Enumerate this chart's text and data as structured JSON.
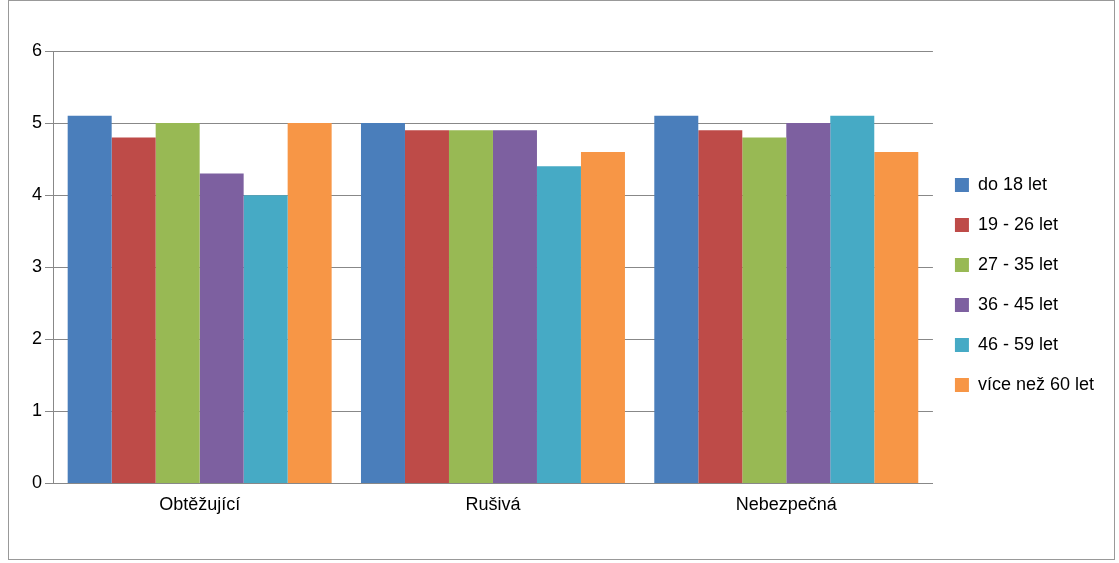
{
  "chart_data": {
    "type": "bar",
    "categories": [
      "Obtěžující",
      "Rušivá",
      "Nebezpečná"
    ],
    "series": [
      {
        "name": "do 18 let",
        "color": "#4a7ebb",
        "values": [
          5.1,
          5.0,
          5.1
        ]
      },
      {
        "name": "19 - 26 let",
        "color": "#be4b48",
        "values": [
          4.8,
          4.9,
          4.9
        ]
      },
      {
        "name": "27 - 35 let",
        "color": "#98b954",
        "values": [
          5.0,
          4.9,
          4.8
        ]
      },
      {
        "name": "36 - 45 let",
        "color": "#7d60a0",
        "values": [
          4.3,
          4.9,
          5.0
        ]
      },
      {
        "name": "46 - 59 let",
        "color": "#46aac5",
        "values": [
          4.0,
          4.4,
          5.1
        ]
      },
      {
        "name": "více než 60 let",
        "color": "#f79646",
        "values": [
          5.0,
          4.6,
          4.6
        ]
      }
    ],
    "ylim": [
      0,
      6
    ],
    "yticks": [
      0,
      1,
      2,
      3,
      4,
      5,
      6
    ],
    "grid": "y",
    "legend": "right"
  }
}
